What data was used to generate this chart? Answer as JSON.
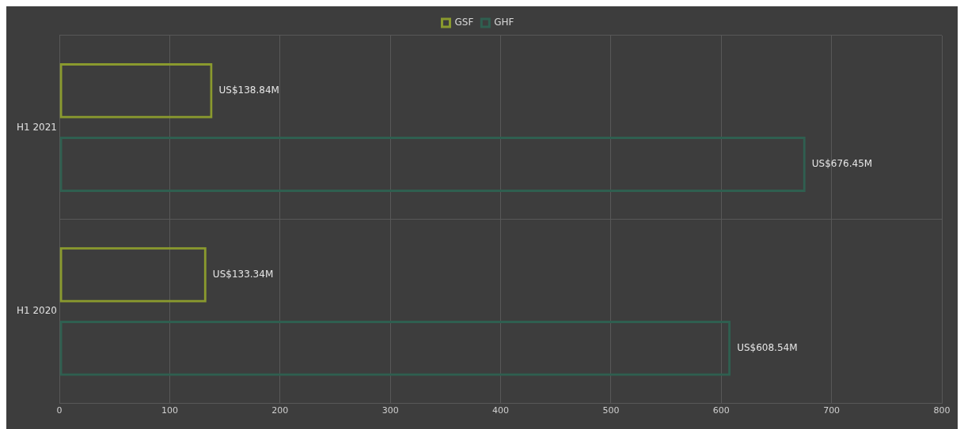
{
  "chart_data": {
    "type": "bar",
    "orientation": "horizontal",
    "categories": [
      "H1 2021",
      "H1 2020"
    ],
    "series": [
      {
        "name": "GSF",
        "color": "#8a9a2e",
        "values": [
          138.84,
          133.34
        ],
        "value_labels": [
          "US$138.84M",
          "US$133.34M"
        ]
      },
      {
        "name": "GHF",
        "color": "#2f5f50",
        "values": [
          676.45,
          608.54
        ],
        "value_labels": [
          "US$676.45M",
          "US$608.54M"
        ]
      }
    ],
    "xlim": [
      0,
      800
    ],
    "xticks": [
      0,
      100,
      200,
      300,
      400,
      500,
      600,
      700,
      800
    ],
    "grid": true,
    "legend": "top"
  }
}
